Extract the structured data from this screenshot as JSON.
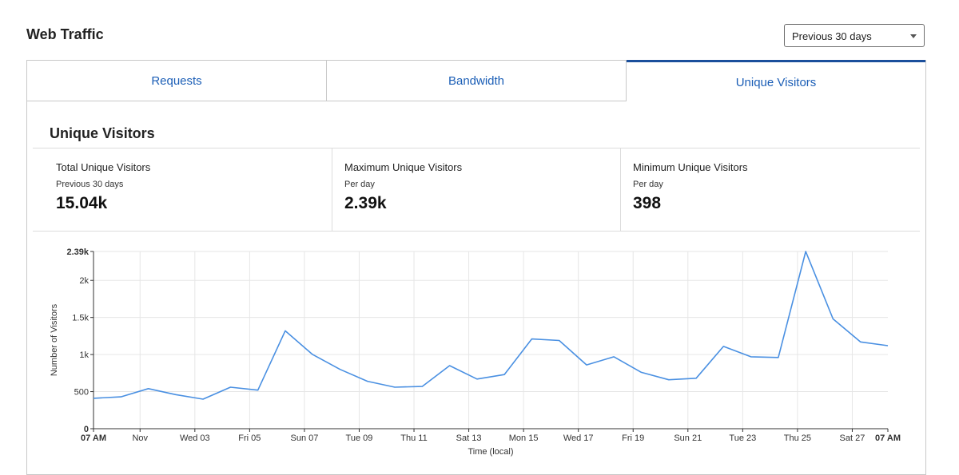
{
  "header": {
    "title": "Web Traffic",
    "range_select": "Previous 30 days"
  },
  "tabs": [
    {
      "label": "Requests",
      "active": false
    },
    {
      "label": "Bandwidth",
      "active": false
    },
    {
      "label": "Unique Visitors",
      "active": true
    }
  ],
  "section": {
    "title": "Unique Visitors"
  },
  "stats": [
    {
      "label": "Total Unique Visitors",
      "sub": "Previous 30 days",
      "value": "15.04k"
    },
    {
      "label": "Maximum Unique Visitors",
      "sub": "Per day",
      "value": "2.39k"
    },
    {
      "label": "Minimum Unique Visitors",
      "sub": "Per day",
      "value": "398"
    }
  ],
  "colors": {
    "accent": "#1b5eb6",
    "tab_active_border": "#1b4f9c",
    "line": "#4a90e2",
    "grid": "#e6e6e6"
  },
  "chart_data": {
    "type": "line",
    "ylabel": "Number of Visitors",
    "xlabel": "Time (local)",
    "ylim": [
      0,
      2390
    ],
    "y_ticks": [
      {
        "label": "0",
        "value": 0,
        "bold": true
      },
      {
        "label": "500",
        "value": 500
      },
      {
        "label": "1k",
        "value": 1000
      },
      {
        "label": "1.5k",
        "value": 1500
      },
      {
        "label": "2k",
        "value": 2000
      },
      {
        "label": "2.39k",
        "value": 2390,
        "bold": true
      }
    ],
    "x_ticks": [
      {
        "label": "07 AM",
        "index": 0,
        "bold": true
      },
      {
        "label": "Nov",
        "index": 1.7
      },
      {
        "label": "Wed 03",
        "index": 3.7
      },
      {
        "label": "Fri 05",
        "index": 5.7
      },
      {
        "label": "Sun 07",
        "index": 7.7
      },
      {
        "label": "Tue 09",
        "index": 9.7
      },
      {
        "label": "Thu 11",
        "index": 11.7
      },
      {
        "label": "Sat 13",
        "index": 13.7
      },
      {
        "label": "Mon 15",
        "index": 15.7
      },
      {
        "label": "Wed 17",
        "index": 17.7
      },
      {
        "label": "Fri 19",
        "index": 19.7
      },
      {
        "label": "Sun 21",
        "index": 21.7
      },
      {
        "label": "Tue 23",
        "index": 23.7
      },
      {
        "label": "Thu 25",
        "index": 25.7
      },
      {
        "label": "Sat 27",
        "index": 27.7
      },
      {
        "label": "07 AM",
        "index": 29,
        "bold": true
      }
    ],
    "x_count": 30,
    "series": [
      {
        "values": [
          410,
          430,
          540,
          460,
          398,
          560,
          520,
          1320,
          1000,
          800,
          640,
          560,
          570,
          850,
          670,
          730,
          1210,
          1190,
          860,
          970,
          760,
          660,
          680,
          1110,
          970,
          960,
          2390,
          1480,
          1170,
          1120
        ]
      }
    ],
    "grid": true
  }
}
